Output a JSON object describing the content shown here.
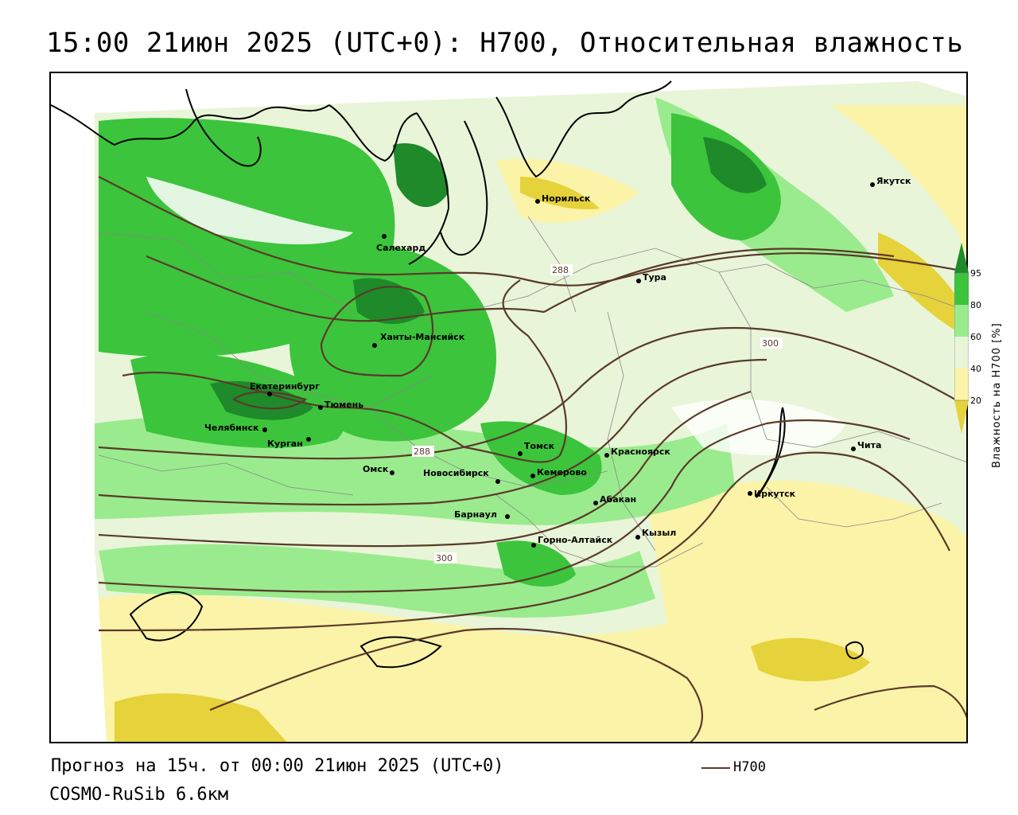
{
  "title": "15:00 21июн 2025 (UTC+0): H700, Относительная влажность",
  "footer": {
    "forecast": "Прогноз на 15ч. от 00:00 21июн 2025 (UTC+0)",
    "model": "COSMO-RuSib 6.6км",
    "contour_legend": "H700"
  },
  "colorbar": {
    "title": "Влажность на H700 [%]",
    "ticks": [
      "95",
      "80",
      "60",
      "40",
      "20"
    ],
    "colors": [
      "#1e8a2a",
      "#3cc43c",
      "#9aeb8e",
      "#e8f5d8",
      "#fbf3a8",
      "#e6d23a",
      "#c8b21c"
    ]
  },
  "contour_labels": [
    "288",
    "288",
    "300",
    "300"
  ],
  "colors": {
    "contour": "#5a3a2a",
    "coast": "#000000",
    "border": "#888888"
  },
  "cities": [
    {
      "name": "Якутск"
    },
    {
      "name": "Норильск"
    },
    {
      "name": "Салехард"
    },
    {
      "name": "Тура"
    },
    {
      "name": "Ханты-Мансийск"
    },
    {
      "name": "Екатеринбург"
    },
    {
      "name": "Тюмень"
    },
    {
      "name": "Челябинск"
    },
    {
      "name": "Курган"
    },
    {
      "name": "Омск"
    },
    {
      "name": "Новосибирск"
    },
    {
      "name": "Томск"
    },
    {
      "name": "Кемерово"
    },
    {
      "name": "Красноярск"
    },
    {
      "name": "Барнаул"
    },
    {
      "name": "Абакан"
    },
    {
      "name": "Горно-Алтайск"
    },
    {
      "name": "Кызыл"
    },
    {
      "name": "Иркутск"
    },
    {
      "name": "Чита"
    }
  ]
}
